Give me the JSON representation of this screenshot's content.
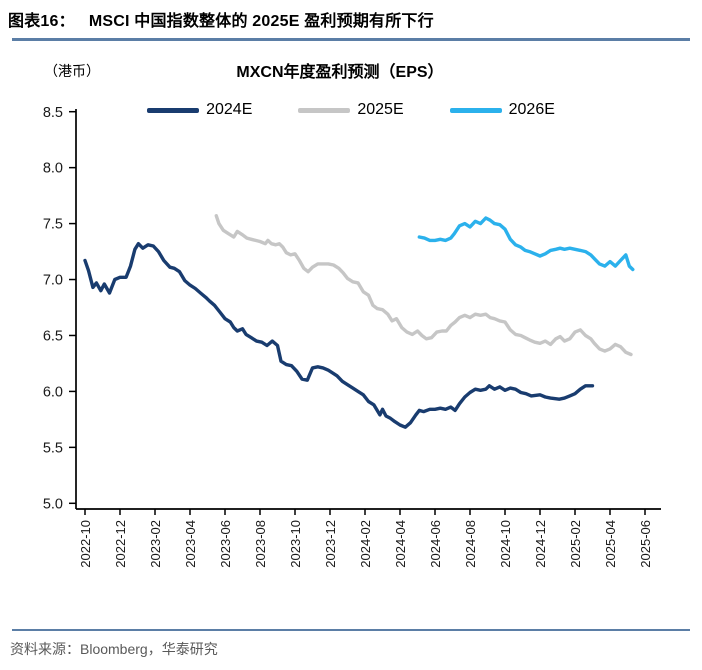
{
  "header": {
    "label": "图表16：",
    "title": "MSCI 中国指数整体的 2025E 盈利预期有所下行"
  },
  "chart": {
    "unit_label": "（港币）",
    "title": "MXCN年度盈利预测（EPS）"
  },
  "footer": {
    "prefix": "资料来源：",
    "source": "Bloomberg",
    "suffix": "，华泰研究"
  },
  "colors": {
    "rule": "#5B7EA6",
    "axis": "#000000",
    "tick_label": "#1a1a1a",
    "series_2024E": "#193C6F",
    "series_2025E": "#C6C6C6",
    "series_2026E": "#2BB1EC"
  },
  "chart_data": {
    "type": "line",
    "title": "MXCN年度盈利预测（EPS）",
    "y_unit": "港币",
    "ylim": [
      5.0,
      8.5
    ],
    "y_tick_step": 0.5,
    "y_tick_labels": [
      "5.0",
      "5.5",
      "6.0",
      "6.5",
      "7.0",
      "7.5",
      "8.0",
      "8.5"
    ],
    "x_tick_labels": [
      "2022-10",
      "2022-12",
      "2023-02",
      "2023-04",
      "2023-06",
      "2023-08",
      "2023-10",
      "2023-12",
      "2024-02",
      "2024-04",
      "2024-06",
      "2024-08",
      "2024-10",
      "2024-12",
      "2025-02",
      "2025-04",
      "2025-06"
    ],
    "x_axis_note": "x in months since 2022-10, one tick per 2 months",
    "x_months_range": [
      0,
      32
    ],
    "grid": false,
    "legend_position": "top",
    "series": [
      {
        "name": "2024E",
        "color": "#193C6F",
        "points": [
          [
            0,
            7.17
          ],
          [
            0.2,
            7.08
          ],
          [
            0.45,
            6.93
          ],
          [
            0.65,
            6.97
          ],
          [
            0.9,
            6.9
          ],
          [
            1.1,
            6.96
          ],
          [
            1.4,
            6.88
          ],
          [
            1.7,
            7.0
          ],
          [
            2.0,
            7.02
          ],
          [
            2.35,
            7.02
          ],
          [
            2.6,
            7.12
          ],
          [
            2.85,
            7.27
          ],
          [
            3.05,
            7.32
          ],
          [
            3.3,
            7.28
          ],
          [
            3.6,
            7.31
          ],
          [
            3.9,
            7.3
          ],
          [
            4.2,
            7.25
          ],
          [
            4.5,
            7.17
          ],
          [
            4.85,
            7.11
          ],
          [
            5.1,
            7.1
          ],
          [
            5.4,
            7.07
          ],
          [
            5.7,
            6.99
          ],
          [
            6.0,
            6.95
          ],
          [
            6.3,
            6.92
          ],
          [
            6.6,
            6.88
          ],
          [
            6.9,
            6.84
          ],
          [
            7.1,
            6.81
          ],
          [
            7.4,
            6.77
          ],
          [
            7.7,
            6.71
          ],
          [
            8.0,
            6.65
          ],
          [
            8.3,
            6.62
          ],
          [
            8.5,
            6.57
          ],
          [
            8.7,
            6.54
          ],
          [
            9.0,
            6.56
          ],
          [
            9.2,
            6.51
          ],
          [
            9.5,
            6.48
          ],
          [
            9.8,
            6.45
          ],
          [
            10.1,
            6.44
          ],
          [
            10.4,
            6.41
          ],
          [
            10.7,
            6.45
          ],
          [
            11.0,
            6.41
          ],
          [
            11.2,
            6.27
          ],
          [
            11.5,
            6.24
          ],
          [
            11.8,
            6.23
          ],
          [
            12.1,
            6.18
          ],
          [
            12.4,
            6.11
          ],
          [
            12.7,
            6.1
          ],
          [
            13.0,
            6.21
          ],
          [
            13.3,
            6.22
          ],
          [
            13.6,
            6.21
          ],
          [
            13.9,
            6.19
          ],
          [
            14.1,
            6.17
          ],
          [
            14.4,
            6.14
          ],
          [
            14.7,
            6.09
          ],
          [
            15.0,
            6.06
          ],
          [
            15.3,
            6.03
          ],
          [
            15.6,
            6.0
          ],
          [
            15.9,
            5.97
          ],
          [
            16.2,
            5.91
          ],
          [
            16.5,
            5.88
          ],
          [
            16.85,
            5.79
          ],
          [
            17.0,
            5.84
          ],
          [
            17.2,
            5.78
          ],
          [
            17.45,
            5.76
          ],
          [
            17.7,
            5.73
          ],
          [
            18.0,
            5.7
          ],
          [
            18.3,
            5.68
          ],
          [
            18.6,
            5.72
          ],
          [
            18.9,
            5.79
          ],
          [
            19.1,
            5.83
          ],
          [
            19.35,
            5.82
          ],
          [
            19.7,
            5.84
          ],
          [
            20.0,
            5.84
          ],
          [
            20.3,
            5.85
          ],
          [
            20.6,
            5.84
          ],
          [
            20.9,
            5.86
          ],
          [
            21.15,
            5.83
          ],
          [
            21.4,
            5.89
          ],
          [
            21.7,
            5.95
          ],
          [
            22.0,
            5.99
          ],
          [
            22.3,
            6.02
          ],
          [
            22.6,
            6.01
          ],
          [
            22.9,
            6.02
          ],
          [
            23.1,
            6.05
          ],
          [
            23.4,
            6.02
          ],
          [
            23.7,
            6.04
          ],
          [
            24.0,
            6.01
          ],
          [
            24.3,
            6.03
          ],
          [
            24.6,
            6.02
          ],
          [
            24.9,
            5.99
          ],
          [
            25.2,
            5.98
          ],
          [
            25.5,
            5.96
          ],
          [
            26.0,
            5.97
          ],
          [
            26.3,
            5.95
          ],
          [
            26.6,
            5.94
          ],
          [
            27.1,
            5.93
          ],
          [
            27.4,
            5.94
          ],
          [
            27.7,
            5.96
          ],
          [
            28.0,
            5.98
          ],
          [
            28.3,
            6.02
          ],
          [
            28.6,
            6.05
          ],
          [
            29.0,
            6.05
          ]
        ]
      },
      {
        "name": "2025E",
        "color": "#C6C6C6",
        "points": [
          [
            7.5,
            7.57
          ],
          [
            7.65,
            7.5
          ],
          [
            7.9,
            7.44
          ],
          [
            8.2,
            7.41
          ],
          [
            8.5,
            7.38
          ],
          [
            8.7,
            7.43
          ],
          [
            9.0,
            7.4
          ],
          [
            9.25,
            7.37
          ],
          [
            9.5,
            7.36
          ],
          [
            9.75,
            7.35
          ],
          [
            10.0,
            7.34
          ],
          [
            10.3,
            7.32
          ],
          [
            10.45,
            7.35
          ],
          [
            10.65,
            7.32
          ],
          [
            10.9,
            7.31
          ],
          [
            11.1,
            7.32
          ],
          [
            11.3,
            7.29
          ],
          [
            11.5,
            7.24
          ],
          [
            11.75,
            7.22
          ],
          [
            12.0,
            7.23
          ],
          [
            12.25,
            7.17
          ],
          [
            12.5,
            7.1
          ],
          [
            12.75,
            7.07
          ],
          [
            13.0,
            7.11
          ],
          [
            13.3,
            7.14
          ],
          [
            13.6,
            7.14
          ],
          [
            13.9,
            7.14
          ],
          [
            14.2,
            7.13
          ],
          [
            14.5,
            7.1
          ],
          [
            14.75,
            7.06
          ],
          [
            15.0,
            7.01
          ],
          [
            15.3,
            6.98
          ],
          [
            15.6,
            6.97
          ],
          [
            15.9,
            6.89
          ],
          [
            16.2,
            6.86
          ],
          [
            16.45,
            6.77
          ],
          [
            16.7,
            6.74
          ],
          [
            17.0,
            6.73
          ],
          [
            17.3,
            6.69
          ],
          [
            17.55,
            6.63
          ],
          [
            17.8,
            6.65
          ],
          [
            18.1,
            6.57
          ],
          [
            18.4,
            6.53
          ],
          [
            18.7,
            6.51
          ],
          [
            19.0,
            6.54
          ],
          [
            19.25,
            6.5
          ],
          [
            19.5,
            6.47
          ],
          [
            19.8,
            6.48
          ],
          [
            20.1,
            6.53
          ],
          [
            20.4,
            6.54
          ],
          [
            20.65,
            6.54
          ],
          [
            20.9,
            6.59
          ],
          [
            21.15,
            6.62
          ],
          [
            21.4,
            6.66
          ],
          [
            21.7,
            6.68
          ],
          [
            22.0,
            6.66
          ],
          [
            22.3,
            6.69
          ],
          [
            22.6,
            6.68
          ],
          [
            22.9,
            6.69
          ],
          [
            23.15,
            6.66
          ],
          [
            23.4,
            6.65
          ],
          [
            23.7,
            6.63
          ],
          [
            24.0,
            6.62
          ],
          [
            24.3,
            6.55
          ],
          [
            24.6,
            6.51
          ],
          [
            24.9,
            6.5
          ],
          [
            25.15,
            6.48
          ],
          [
            25.4,
            6.46
          ],
          [
            25.7,
            6.44
          ],
          [
            26.0,
            6.43
          ],
          [
            26.3,
            6.45
          ],
          [
            26.6,
            6.42
          ],
          [
            26.9,
            6.47
          ],
          [
            27.15,
            6.49
          ],
          [
            27.4,
            6.45
          ],
          [
            27.7,
            6.47
          ],
          [
            28.0,
            6.53
          ],
          [
            28.3,
            6.55
          ],
          [
            28.6,
            6.5
          ],
          [
            28.9,
            6.47
          ],
          [
            29.1,
            6.43
          ],
          [
            29.4,
            6.38
          ],
          [
            29.7,
            6.36
          ],
          [
            30.0,
            6.38
          ],
          [
            30.3,
            6.42
          ],
          [
            30.6,
            6.4
          ],
          [
            30.9,
            6.35
          ],
          [
            31.2,
            6.33
          ]
        ]
      },
      {
        "name": "2026E",
        "color": "#2BB1EC",
        "points": [
          [
            19.1,
            7.38
          ],
          [
            19.4,
            7.37
          ],
          [
            19.7,
            7.35
          ],
          [
            20.0,
            7.35
          ],
          [
            20.3,
            7.36
          ],
          [
            20.6,
            7.35
          ],
          [
            20.9,
            7.37
          ],
          [
            21.1,
            7.41
          ],
          [
            21.4,
            7.48
          ],
          [
            21.7,
            7.5
          ],
          [
            22.0,
            7.47
          ],
          [
            22.3,
            7.52
          ],
          [
            22.6,
            7.5
          ],
          [
            22.9,
            7.55
          ],
          [
            23.15,
            7.53
          ],
          [
            23.4,
            7.5
          ],
          [
            23.7,
            7.49
          ],
          [
            24.0,
            7.45
          ],
          [
            24.3,
            7.36
          ],
          [
            24.6,
            7.31
          ],
          [
            24.9,
            7.29
          ],
          [
            25.15,
            7.26
          ],
          [
            25.4,
            7.25
          ],
          [
            25.7,
            7.23
          ],
          [
            26.0,
            7.21
          ],
          [
            26.3,
            7.23
          ],
          [
            26.6,
            7.26
          ],
          [
            26.9,
            7.27
          ],
          [
            27.15,
            7.28
          ],
          [
            27.4,
            7.27
          ],
          [
            27.7,
            7.28
          ],
          [
            28.0,
            7.27
          ],
          [
            28.3,
            7.26
          ],
          [
            28.6,
            7.25
          ],
          [
            28.9,
            7.22
          ],
          [
            29.15,
            7.18
          ],
          [
            29.4,
            7.14
          ],
          [
            29.7,
            7.12
          ],
          [
            30.0,
            7.16
          ],
          [
            30.3,
            7.12
          ],
          [
            30.6,
            7.17
          ],
          [
            30.9,
            7.22
          ],
          [
            31.1,
            7.12
          ],
          [
            31.3,
            7.09
          ]
        ]
      }
    ]
  }
}
